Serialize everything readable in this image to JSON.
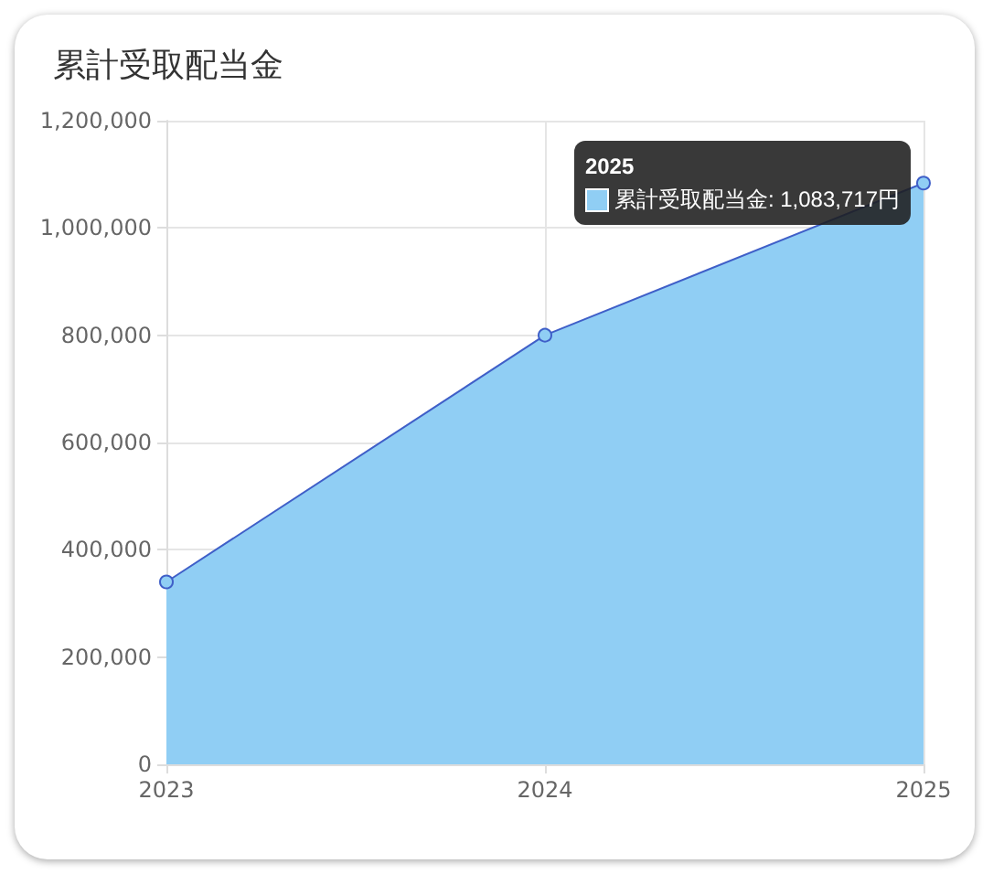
{
  "chart_data": {
    "type": "area",
    "title": "累計受取配当金",
    "categories": [
      "2023",
      "2024",
      "2025"
    ],
    "values": [
      340000,
      800000,
      1083717
    ],
    "color": "#90cef4",
    "ylim": [
      0,
      1200000
    ],
    "yticks": [
      {
        "value": 0,
        "label": "0"
      },
      {
        "value": 200000,
        "label": "200,000"
      },
      {
        "value": 400000,
        "label": "400,000"
      },
      {
        "value": 600000,
        "label": "600,000"
      },
      {
        "value": 800000,
        "label": "800,000"
      },
      {
        "value": 1000000,
        "label": "1,000,000"
      },
      {
        "value": 1200000,
        "label": "1,200,000"
      }
    ],
    "grid": true,
    "marker": "circle",
    "annotations": [
      "2025",
      "累計受取配当金: 1,083,717円"
    ]
  }
}
